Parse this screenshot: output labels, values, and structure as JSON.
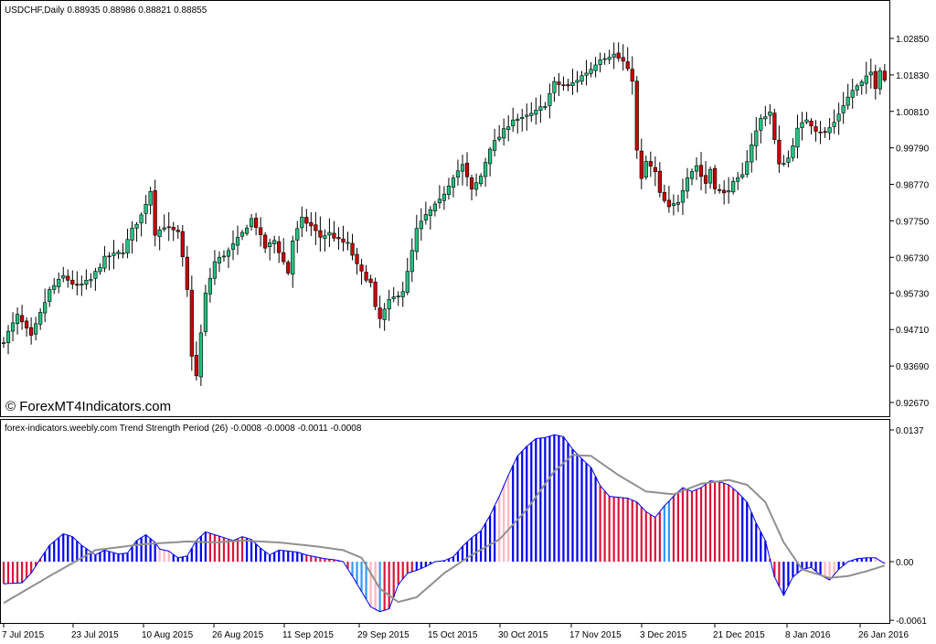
{
  "main_panel": {
    "header": "USDCHF,Daily  0.88935 0.88986 0.88821 0.88855",
    "watermark": "© ForexMT4Indicators.com"
  },
  "indicator_panel": {
    "header": "forex-indicators.weebly.com Trend Strength Period (26) -0.0008 -0.0008 -0.0011 -0.0008"
  },
  "colors": {
    "bull": "#26c281",
    "bear": "#cc0000",
    "wick": "#000000",
    "hist_blue": "#0000ee",
    "hist_light_blue": "#3399ff",
    "hist_red": "#dc143c",
    "hist_pink": "#ffb6c1",
    "signal_line": "#909090"
  },
  "chart_data": [
    {
      "type": "candlestick",
      "title": "USDCHF,Daily",
      "price_axis_ticks": [
        "1.02850",
        "1.01830",
        "1.00810",
        "0.99790",
        "0.98770",
        "0.97750",
        "0.96730",
        "0.95730",
        "0.94710",
        "0.93690",
        "0.92670"
      ],
      "ylim": [
        0.9225,
        1.0355
      ],
      "x_ticks": [
        "7 Jul 2015",
        "23 Jul 2015",
        "10 Aug 2015",
        "26 Aug 2015",
        "11 Sep 2015",
        "29 Sep 2015",
        "15 Oct 2015",
        "30 Oct 2015",
        "17 Nov 2015",
        "3 Dec 2015",
        "21 Dec 2015",
        "8 Jan 2016",
        "26 Jan 2016"
      ],
      "grid": false,
      "anchors": [
        [
          0,
          0.944
        ],
        [
          3,
          0.951
        ],
        [
          6,
          0.945
        ],
        [
          10,
          0.958
        ],
        [
          13,
          0.962
        ],
        [
          16,
          0.959
        ],
        [
          19,
          0.961
        ],
        [
          22,
          0.967
        ],
        [
          24,
          0.968
        ],
        [
          26,
          0.969
        ],
        [
          28,
          0.975
        ],
        [
          30,
          0.979
        ],
        [
          32,
          0.986
        ],
        [
          33,
          0.974
        ],
        [
          35,
          0.976
        ],
        [
          38,
          0.974
        ],
        [
          39,
          0.967
        ],
        [
          40,
          0.958
        ],
        [
          41,
          0.94
        ],
        [
          42,
          0.934
        ],
        [
          43,
          0.946
        ],
        [
          44,
          0.957
        ],
        [
          46,
          0.966
        ],
        [
          49,
          0.969
        ],
        [
          52,
          0.974
        ],
        [
          54,
          0.978
        ],
        [
          55,
          0.976
        ],
        [
          57,
          0.97
        ],
        [
          59,
          0.972
        ],
        [
          61,
          0.966
        ],
        [
          62,
          0.963
        ],
        [
          63,
          0.972
        ],
        [
          65,
          0.978
        ],
        [
          67,
          0.976
        ],
        [
          69,
          0.973
        ],
        [
          71,
          0.974
        ],
        [
          73,
          0.972
        ],
        [
          75,
          0.971
        ],
        [
          76,
          0.968
        ],
        [
          77,
          0.965
        ],
        [
          78,
          0.963
        ],
        [
          80,
          0.96
        ],
        [
          81,
          0.953
        ],
        [
          82,
          0.95
        ],
        [
          84,
          0.955
        ],
        [
          87,
          0.958
        ],
        [
          88,
          0.963
        ],
        [
          90,
          0.975
        ],
        [
          92,
          0.979
        ],
        [
          95,
          0.983
        ],
        [
          98,
          0.99
        ],
        [
          100,
          0.993
        ],
        [
          102,
          0.986
        ],
        [
          104,
          0.99
        ],
        [
          106,
          0.998
        ],
        [
          108,
          1.001
        ],
        [
          111,
          1.006
        ],
        [
          113,
          1.006
        ],
        [
          116,
          1.008
        ],
        [
          118,
          1.01
        ],
        [
          120,
          1.016
        ],
        [
          123,
          1.015
        ],
        [
          126,
          1.018
        ],
        [
          128,
          1.02
        ],
        [
          130,
          1.023
        ],
        [
          133,
          1.024
        ],
        [
          135,
          1.022
        ],
        [
          137,
          1.017
        ],
        [
          138,
          0.997
        ],
        [
          139,
          0.989
        ],
        [
          140,
          0.994
        ],
        [
          142,
          0.991
        ],
        [
          143,
          0.985
        ],
        [
          144,
          0.983
        ],
        [
          145,
          0.981
        ],
        [
          147,
          0.983
        ],
        [
          149,
          0.99
        ],
        [
          151,
          0.993
        ],
        [
          152,
          0.99
        ],
        [
          153,
          0.988
        ],
        [
          154,
          0.992
        ],
        [
          155,
          0.987
        ],
        [
          157,
          0.985
        ],
        [
          159,
          0.988
        ],
        [
          161,
          0.99
        ],
        [
          163,
          0.999
        ],
        [
          165,
          1.006
        ],
        [
          167,
          1.008
        ],
        [
          168,
          1.0
        ],
        [
          169,
          0.993
        ],
        [
          171,
          0.995
        ],
        [
          173,
          1.003
        ],
        [
          175,
          1.006
        ],
        [
          177,
          1.003
        ],
        [
          179,
          1.002
        ],
        [
          181,
          1.005
        ],
        [
          183,
          1.01
        ],
        [
          185,
          1.014
        ],
        [
          187,
          1.016
        ],
        [
          189,
          1.019
        ],
        [
          190,
          1.015
        ],
        [
          191,
          1.02
        ],
        [
          192,
          1.017
        ]
      ]
    },
    {
      "type": "bar",
      "title": "Trend Strength Period (26)",
      "values_header": [
        -0.0008,
        -0.0008,
        -0.0011,
        -0.0008
      ],
      "value_axis_ticks": [
        "0.0137",
        "0.00",
        "-0.0061"
      ],
      "ylim": [
        -0.0065,
        0.0138
      ],
      "histogram_anchors": [
        [
          0,
          -0.0023
        ],
        [
          4,
          -0.0022
        ],
        [
          6,
          -0.0012
        ],
        [
          8,
          0.0003
        ],
        [
          10,
          0.0017
        ],
        [
          13,
          0.0029
        ],
        [
          15,
          0.0026
        ],
        [
          17,
          0.0017
        ],
        [
          20,
          0.0007
        ],
        [
          22,
          0.0012
        ],
        [
          25,
          0.0008
        ],
        [
          27,
          0.0009
        ],
        [
          29,
          0.0022
        ],
        [
          31,
          0.0028
        ],
        [
          33,
          0.002
        ],
        [
          34,
          0.0013
        ],
        [
          36,
          0.0011
        ],
        [
          38,
          0.0004
        ],
        [
          40,
          0.0006
        ],
        [
          42,
          0.0022
        ],
        [
          44,
          0.0031
        ],
        [
          46,
          0.0028
        ],
        [
          48,
          0.0025
        ],
        [
          50,
          0.0022
        ],
        [
          52,
          0.0026
        ],
        [
          54,
          0.0023
        ],
        [
          56,
          0.0014
        ],
        [
          58,
          0.0007
        ],
        [
          60,
          0.0012
        ],
        [
          62,
          0.0011
        ],
        [
          64,
          0.001
        ],
        [
          66,
          0.0007
        ],
        [
          68,
          0.0005
        ],
        [
          70,
          0.0003
        ],
        [
          72,
          0.0002
        ],
        [
          74,
          0.0
        ],
        [
          76,
          -0.0015
        ],
        [
          78,
          -0.0031
        ],
        [
          80,
          -0.0047
        ],
        [
          82,
          -0.0052
        ],
        [
          84,
          -0.0049
        ],
        [
          86,
          -0.0024
        ],
        [
          88,
          -0.0012
        ],
        [
          90,
          -0.0009
        ],
        [
          92,
          -0.0005
        ],
        [
          94,
          0.0
        ],
        [
          96,
          0.0001
        ],
        [
          98,
          0.0005
        ],
        [
          100,
          0.0016
        ],
        [
          102,
          0.0025
        ],
        [
          104,
          0.0032
        ],
        [
          106,
          0.0048
        ],
        [
          108,
          0.0068
        ],
        [
          110,
          0.009
        ],
        [
          112,
          0.011
        ],
        [
          114,
          0.012
        ],
        [
          116,
          0.0128
        ],
        [
          118,
          0.0129
        ],
        [
          120,
          0.0132
        ],
        [
          122,
          0.013
        ],
        [
          124,
          0.0117
        ],
        [
          126,
          0.0107
        ],
        [
          128,
          0.0098
        ],
        [
          130,
          0.0079
        ],
        [
          132,
          0.0068
        ],
        [
          134,
          0.0067
        ],
        [
          136,
          0.0066
        ],
        [
          138,
          0.0062
        ],
        [
          140,
          0.0052
        ],
        [
          142,
          0.0046
        ],
        [
          144,
          0.0058
        ],
        [
          146,
          0.0068
        ],
        [
          148,
          0.0077
        ],
        [
          150,
          0.0073
        ],
        [
          152,
          0.0077
        ],
        [
          154,
          0.0084
        ],
        [
          156,
          0.0083
        ],
        [
          158,
          0.008
        ],
        [
          160,
          0.0072
        ],
        [
          162,
          0.0062
        ],
        [
          164,
          0.004
        ],
        [
          166,
          0.0022
        ],
        [
          168,
          -0.0016
        ],
        [
          170,
          -0.0035
        ],
        [
          172,
          -0.0016
        ],
        [
          174,
          -0.0008
        ],
        [
          176,
          -0.0006
        ],
        [
          178,
          -0.0014
        ],
        [
          180,
          -0.0019
        ],
        [
          182,
          -0.0008
        ],
        [
          184,
          0.0
        ],
        [
          186,
          0.0003
        ],
        [
          188,
          0.0004
        ],
        [
          190,
          0.0004
        ],
        [
          192,
          -0.0002
        ]
      ],
      "color_segments": [
        [
          0,
          8,
          "red"
        ],
        [
          8,
          33,
          "blue"
        ],
        [
          34,
          36,
          "pink"
        ],
        [
          37,
          44,
          "blue"
        ],
        [
          45,
          52,
          "red"
        ],
        [
          53,
          65,
          "blue"
        ],
        [
          66,
          75,
          "red"
        ],
        [
          76,
          79,
          "light_blue"
        ],
        [
          80,
          81,
          "pink"
        ],
        [
          82,
          82,
          "light_blue"
        ],
        [
          83,
          89,
          "red"
        ],
        [
          90,
          107,
          "blue"
        ],
        [
          108,
          110,
          "pink"
        ],
        [
          111,
          129,
          "blue"
        ],
        [
          130,
          143,
          "red"
        ],
        [
          144,
          145,
          "light_blue"
        ],
        [
          146,
          160,
          "red"
        ],
        [
          161,
          166,
          "blue"
        ],
        [
          167,
          169,
          "red"
        ],
        [
          170,
          178,
          "blue"
        ],
        [
          179,
          181,
          "pink"
        ],
        [
          182,
          189,
          "blue"
        ],
        [
          190,
          192,
          "pink"
        ]
      ],
      "signal_anchors": [
        [
          0,
          -0.0043
        ],
        [
          10,
          -0.0015
        ],
        [
          20,
          0.0012
        ],
        [
          30,
          0.0018
        ],
        [
          40,
          0.0021
        ],
        [
          46,
          0.002
        ],
        [
          52,
          0.0022
        ],
        [
          60,
          0.002
        ],
        [
          68,
          0.0016
        ],
        [
          74,
          0.0012
        ],
        [
          78,
          0.0004
        ],
        [
          82,
          -0.0028
        ],
        [
          86,
          -0.0042
        ],
        [
          90,
          -0.0037
        ],
        [
          96,
          -0.0012
        ],
        [
          102,
          0.0007
        ],
        [
          108,
          0.0023
        ],
        [
          114,
          0.0054
        ],
        [
          120,
          0.0094
        ],
        [
          124,
          0.0111
        ],
        [
          128,
          0.011
        ],
        [
          134,
          0.009
        ],
        [
          140,
          0.0073
        ],
        [
          146,
          0.007
        ],
        [
          152,
          0.0081
        ],
        [
          158,
          0.0085
        ],
        [
          162,
          0.008
        ],
        [
          166,
          0.0062
        ],
        [
          170,
          0.002
        ],
        [
          174,
          -0.0008
        ],
        [
          180,
          -0.0017
        ],
        [
          184,
          -0.0015
        ],
        [
          188,
          -0.001
        ],
        [
          192,
          -0.0004
        ]
      ]
    }
  ]
}
